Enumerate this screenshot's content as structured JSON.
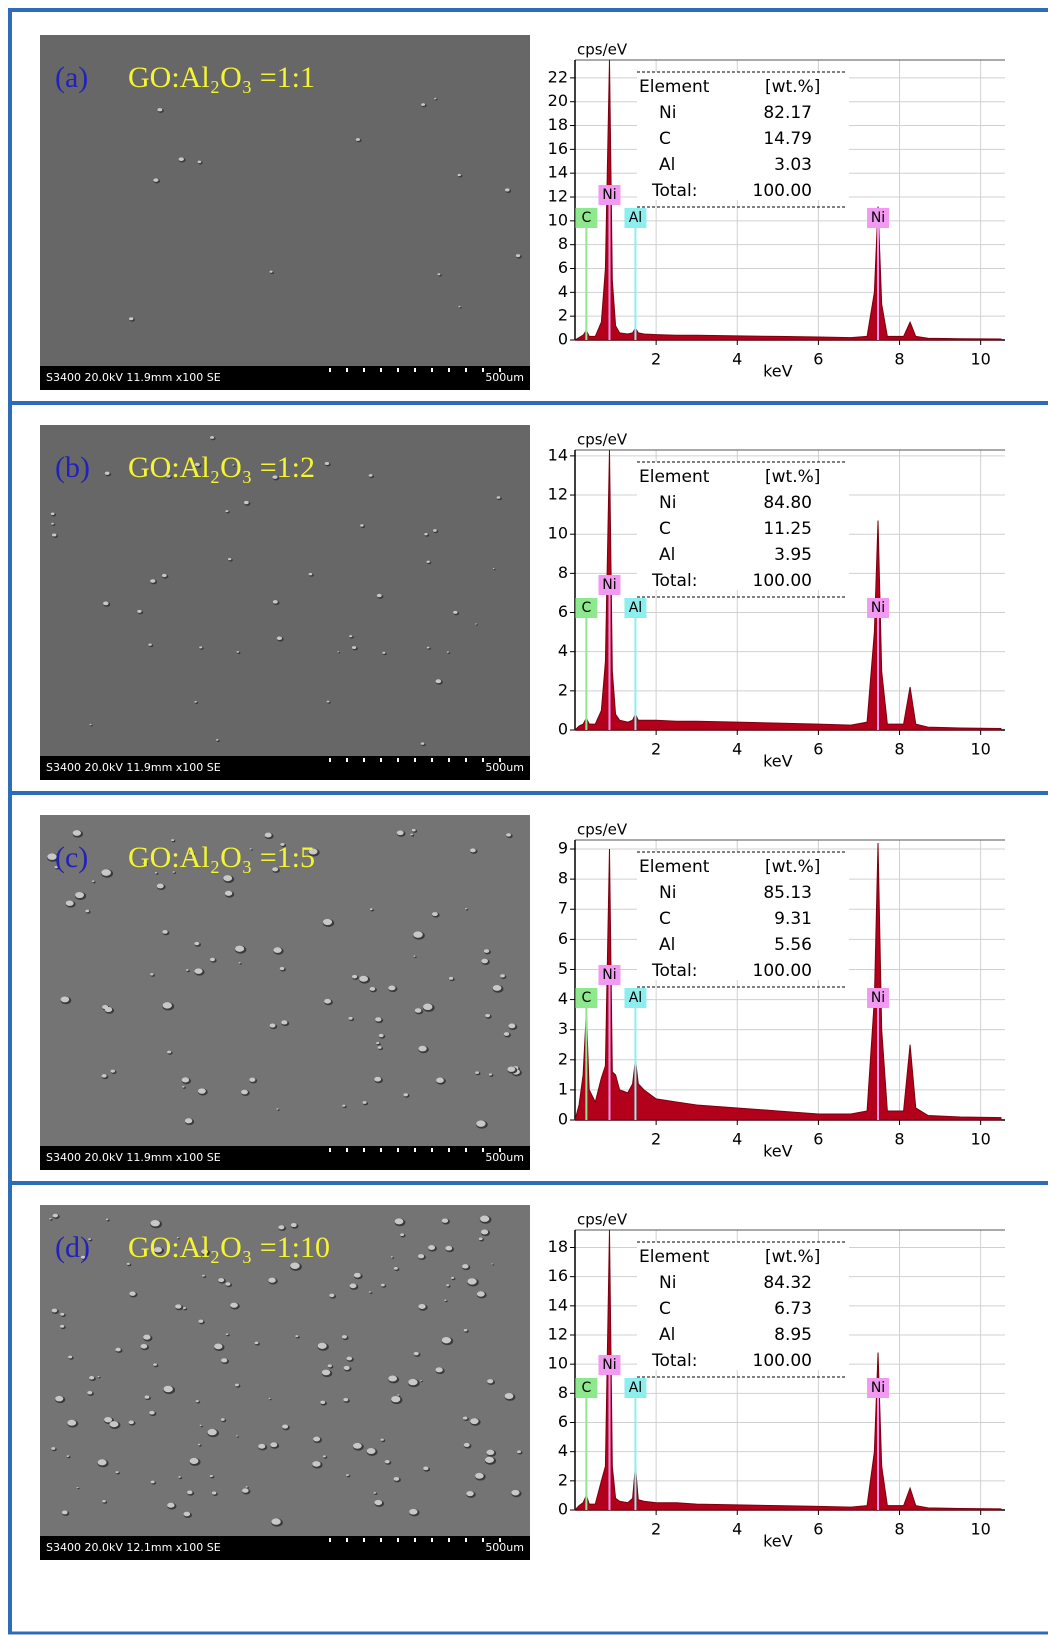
{
  "panels": [
    {
      "label": "(a)",
      "title": "GO:Al₂O₃ =1:1",
      "caption": "S3400 20.0kV 11.9mm x100 SE",
      "scale": "500um"
    },
    {
      "label": "(b)",
      "title": "GO:Al₂O₃ =1:2",
      "caption": "S3400 20.0kV 11.9mm x100 SE",
      "scale": "500um"
    },
    {
      "label": "(c)",
      "title": "GO:Al₂O₃ =1:5",
      "caption": "S3400 20.0kV 11.9mm x100 SE",
      "scale": "500um"
    },
    {
      "label": "(d)",
      "title": "GO:Al₂O₃ =1:10",
      "caption": "S3400 20.0kV 12.1mm x100 SE",
      "scale": "500um"
    }
  ],
  "chart_data": [
    {
      "type": "area",
      "y_label": "cps/eV",
      "x_label": "keV",
      "x": [
        0,
        0.1,
        0.2,
        0.28,
        0.35,
        0.5,
        0.65,
        0.75,
        0.85,
        0.92,
        1.0,
        1.1,
        1.3,
        1.42,
        1.49,
        1.56,
        1.7,
        2.0,
        2.5,
        3.0,
        4.0,
        5.0,
        6.0,
        6.8,
        7.2,
        7.38,
        7.47,
        7.56,
        7.7,
        8.1,
        8.26,
        8.4,
        8.7,
        9.5,
        10.5
      ],
      "series": [
        {
          "color": "#b3001b",
          "values": [
            0,
            0.2,
            0.4,
            0.8,
            0.3,
            0.3,
            1.5,
            6,
            23.5,
            5,
            1.2,
            0.6,
            0.5,
            0.6,
            1.0,
            0.6,
            0.5,
            0.45,
            0.4,
            0.4,
            0.35,
            0.3,
            0.25,
            0.2,
            0.3,
            4,
            11.2,
            3,
            0.3,
            0.3,
            1.5,
            0.3,
            0.15,
            0.1,
            0.08
          ]
        }
      ],
      "xlim": [
        0,
        10.6
      ],
      "xticks": [
        2,
        4,
        6,
        8,
        10
      ],
      "ylim": [
        0,
        23.5
      ],
      "yticks": [
        0,
        2,
        4,
        6,
        8,
        10,
        12,
        14,
        16,
        18,
        20,
        22
      ],
      "grid": true,
      "peak_labels": [
        {
          "text": "C",
          "x": 0.28,
          "color": "#8ee88e"
        },
        {
          "text": "Ni",
          "x": 0.85,
          "color": "#f29af2"
        },
        {
          "text": "Al",
          "x": 1.49,
          "color": "#8eeeee"
        },
        {
          "text": "Ni",
          "x": 7.47,
          "color": "#f29af2"
        }
      ],
      "table": {
        "header": [
          "Element",
          "[wt.%]"
        ],
        "rows": [
          [
            "Ni",
            "82.17"
          ],
          [
            "C",
            "14.79"
          ],
          [
            "Al",
            "3.03"
          ],
          [
            "Total:",
            "100.00"
          ]
        ]
      }
    },
    {
      "type": "area",
      "y_label": "cps/eV",
      "x_label": "keV",
      "x": [
        0,
        0.1,
        0.2,
        0.28,
        0.35,
        0.5,
        0.65,
        0.75,
        0.85,
        0.92,
        1.0,
        1.1,
        1.3,
        1.42,
        1.49,
        1.56,
        1.7,
        2.0,
        2.5,
        3.0,
        4.0,
        5.0,
        6.0,
        6.8,
        7.2,
        7.38,
        7.47,
        7.56,
        7.7,
        8.1,
        8.26,
        8.4,
        8.7,
        9.5,
        10.5
      ],
      "series": [
        {
          "color": "#b3001b",
          "values": [
            0,
            0.2,
            0.3,
            0.6,
            0.3,
            0.3,
            1,
            3.5,
            14.3,
            3,
            0.8,
            0.5,
            0.4,
            0.5,
            0.8,
            0.5,
            0.5,
            0.5,
            0.45,
            0.45,
            0.4,
            0.35,
            0.3,
            0.25,
            0.4,
            5,
            10.7,
            3,
            0.3,
            0.3,
            2.2,
            0.3,
            0.15,
            0.1,
            0.08
          ]
        }
      ],
      "xlim": [
        0,
        10.6
      ],
      "xticks": [
        2,
        4,
        6,
        8,
        10
      ],
      "ylim": [
        0,
        14.3
      ],
      "yticks": [
        0,
        2,
        4,
        6,
        8,
        10,
        12,
        14
      ],
      "grid": true,
      "peak_labels": [
        {
          "text": "C",
          "x": 0.28,
          "color": "#8ee88e"
        },
        {
          "text": "Ni",
          "x": 0.85,
          "color": "#f29af2"
        },
        {
          "text": "Al",
          "x": 1.49,
          "color": "#8eeeee"
        },
        {
          "text": "Ni",
          "x": 7.47,
          "color": "#f29af2"
        }
      ],
      "table": {
        "header": [
          "Element",
          "[wt.%]"
        ],
        "rows": [
          [
            "Ni",
            "84.80"
          ],
          [
            "C",
            "11.25"
          ],
          [
            "Al",
            "3.95"
          ],
          [
            "Total:",
            "100.00"
          ]
        ]
      }
    },
    {
      "type": "area",
      "y_label": "cps/eV",
      "x_label": "keV",
      "x": [
        0,
        0.1,
        0.2,
        0.28,
        0.35,
        0.5,
        0.65,
        0.75,
        0.85,
        0.92,
        1.0,
        1.1,
        1.3,
        1.42,
        1.49,
        1.56,
        1.7,
        2.0,
        2.5,
        3.0,
        4.0,
        5.0,
        6.0,
        6.8,
        7.2,
        7.38,
        7.47,
        7.56,
        7.7,
        8.1,
        8.26,
        8.4,
        8.7,
        9.5,
        10.5
      ],
      "series": [
        {
          "color": "#b3001b",
          "values": [
            0,
            0.5,
            1.5,
            3.6,
            1,
            0.6,
            1.4,
            1.8,
            9.0,
            1.6,
            1.5,
            1,
            0.9,
            1.2,
            2.0,
            1.2,
            1,
            0.7,
            0.6,
            0.5,
            0.4,
            0.3,
            0.2,
            0.2,
            0.3,
            4,
            9.2,
            3,
            0.3,
            0.3,
            2.5,
            0.4,
            0.15,
            0.1,
            0.08
          ]
        }
      ],
      "xlim": [
        0,
        10.6
      ],
      "xticks": [
        2,
        4,
        6,
        8,
        10
      ],
      "ylim": [
        0,
        9.3
      ],
      "yticks": [
        0,
        1,
        2,
        3,
        4,
        5,
        6,
        7,
        8,
        9
      ],
      "grid": true,
      "peak_labels": [
        {
          "text": "C",
          "x": 0.28,
          "color": "#8ee88e"
        },
        {
          "text": "Ni",
          "x": 0.85,
          "color": "#f29af2"
        },
        {
          "text": "Al",
          "x": 1.49,
          "color": "#8eeeee"
        },
        {
          "text": "Ni",
          "x": 7.47,
          "color": "#f29af2"
        }
      ],
      "table": {
        "header": [
          "Element",
          "[wt.%]"
        ],
        "rows": [
          [
            "Ni",
            "85.13"
          ],
          [
            "C",
            "9.31"
          ],
          [
            "Al",
            "5.56"
          ],
          [
            "Total:",
            "100.00"
          ]
        ]
      }
    },
    {
      "type": "area",
      "y_label": "cps/eV",
      "x_label": "keV",
      "x": [
        0,
        0.1,
        0.2,
        0.28,
        0.35,
        0.5,
        0.65,
        0.75,
        0.85,
        0.92,
        1.0,
        1.1,
        1.3,
        1.42,
        1.49,
        1.56,
        1.7,
        2.0,
        2.5,
        3.0,
        4.0,
        5.0,
        6.0,
        6.8,
        7.2,
        7.38,
        7.47,
        7.56,
        7.7,
        8.1,
        8.26,
        8.4,
        8.7,
        9.5,
        10.5
      ],
      "series": [
        {
          "color": "#b3001b",
          "values": [
            0,
            0.3,
            0.5,
            1,
            0.4,
            0.4,
            2,
            3,
            19.2,
            3,
            0.8,
            0.6,
            0.5,
            0.8,
            3,
            0.7,
            0.6,
            0.5,
            0.5,
            0.4,
            0.35,
            0.3,
            0.25,
            0.2,
            0.3,
            4,
            10.8,
            3,
            0.3,
            0.3,
            1.5,
            0.3,
            0.15,
            0.1,
            0.08
          ]
        }
      ],
      "xlim": [
        0,
        10.6
      ],
      "xticks": [
        2,
        4,
        6,
        8,
        10
      ],
      "ylim": [
        0,
        19.2
      ],
      "yticks": [
        0,
        2,
        4,
        6,
        8,
        10,
        12,
        14,
        16,
        18
      ],
      "grid": true,
      "peak_labels": [
        {
          "text": "C",
          "x": 0.28,
          "color": "#8ee88e"
        },
        {
          "text": "Ni",
          "x": 0.85,
          "color": "#f29af2"
        },
        {
          "text": "Al",
          "x": 1.49,
          "color": "#8eeeee"
        },
        {
          "text": "Ni",
          "x": 7.47,
          "color": "#f29af2"
        }
      ],
      "table": {
        "header": [
          "Element",
          "[wt.%]"
        ],
        "rows": [
          [
            "Ni",
            "84.32"
          ],
          [
            "C",
            "6.73"
          ],
          [
            "Al",
            "8.95"
          ],
          [
            "Total:",
            "100.00"
          ]
        ]
      }
    }
  ]
}
